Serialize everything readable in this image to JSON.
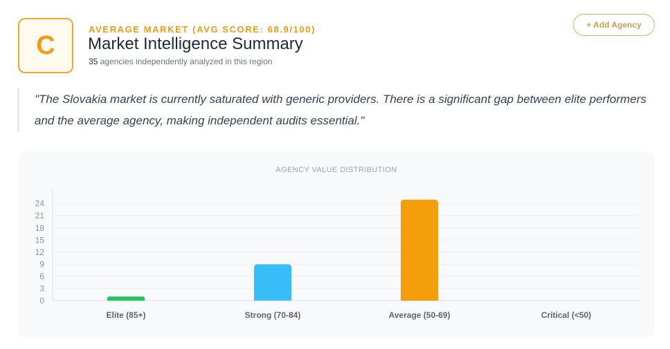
{
  "header": {
    "grade": "C",
    "eyebrow": "AVERAGE MARKET (AVG SCORE: 68.9/100)",
    "title": "Market Intelligence Summary",
    "count": "35",
    "subtitle_rest": " agencies independently analyzed in this region",
    "add_button_label": "+ Add Agency"
  },
  "quote": "\"The Slovakia market is currently saturated with generic providers. There is a significant gap between elite performers and the average agency, making independent audits essential.\"",
  "colors": {
    "accent": "#f29c11",
    "elite": "#22c55e",
    "strong": "#38bdf8",
    "average": "#f59e0b",
    "critical": "#ef4444"
  },
  "chart_data": {
    "type": "bar",
    "title": "AGENCY VALUE DISTRIBUTION",
    "categories": [
      "Elite (85+)",
      "Strong (70-84)",
      "Average (50-69)",
      "Critical (<50)"
    ],
    "values": [
      1,
      9,
      25,
      0
    ],
    "bar_colors": [
      "#22c55e",
      "#38bdf8",
      "#f59e0b",
      "#ef4444"
    ],
    "ylim": [
      0,
      26
    ],
    "yticks": [
      0,
      3,
      6,
      9,
      12,
      15,
      18,
      21,
      24
    ],
    "grid": true,
    "legend": "none"
  }
}
